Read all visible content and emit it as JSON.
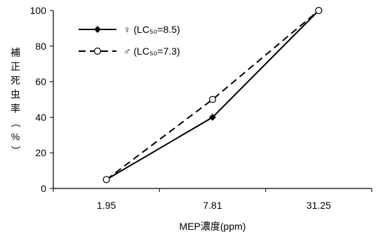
{
  "chart_data": {
    "type": "line",
    "categories": [
      "1.95",
      "7.81",
      "31.25"
    ],
    "series": [
      {
        "name": "♀ (LC₅₀=8.5)",
        "values": [
          5,
          40,
          100
        ],
        "marker": "filled-diamond",
        "line": "solid",
        "color": "#000000"
      },
      {
        "name": "♂ (LC₅₀=7.3)",
        "values": [
          5,
          50,
          100
        ],
        "marker": "open-circle",
        "line": "dashed",
        "color": "#000000"
      }
    ],
    "xlabel": "MEP濃度(ppm)",
    "ylabel_chars": [
      "補",
      "正",
      "死",
      "虫",
      "率",
      "（",
      "%",
      "）"
    ],
    "ylim": [
      0,
      100
    ],
    "yticks": [
      "0",
      "20",
      "40",
      "60",
      "80",
      "100"
    ],
    "legend": "top-left",
    "grid": false
  }
}
